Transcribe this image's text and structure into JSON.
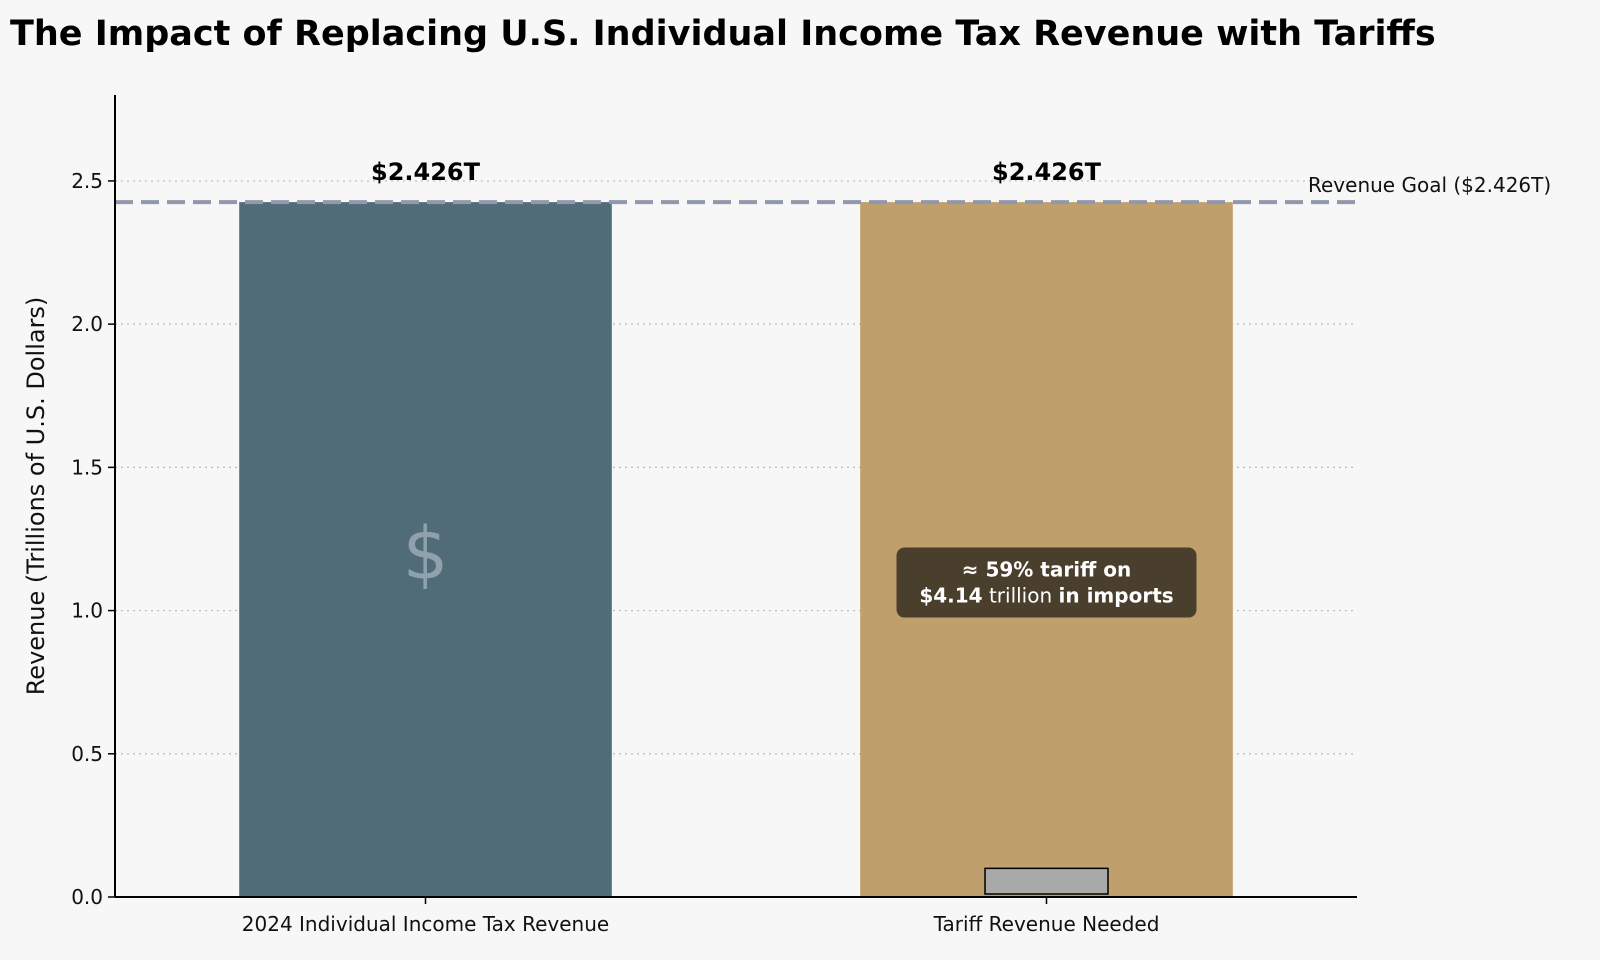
{
  "chart_data": {
    "type": "bar",
    "title": "The Impact of Replacing U.S. Individual Income Tax Revenue with Tariffs",
    "xlabel": "",
    "ylabel": "Revenue (Trillions of U.S. Dollars)",
    "ylim": [
      0,
      2.8
    ],
    "yticks": [
      0.0,
      0.5,
      1.0,
      1.5,
      2.0,
      2.5
    ],
    "ytick_labels": [
      "0.0",
      "0.5",
      "1.0",
      "1.5",
      "2.0",
      "2.5"
    ],
    "grid": "horizontal dotted",
    "categories": [
      "2024 Individual Income Tax Revenue",
      "Tariff Revenue Needed"
    ],
    "values": [
      2.426,
      2.426
    ],
    "value_labels": [
      "$2.426T",
      "$2.426T"
    ],
    "bar_colors": [
      "#506c79",
      "#bf9f6b"
    ],
    "bar_symbol": "$",
    "inset_bar_value": 0.1,
    "inset_bar_color": "#a9a9a9",
    "reference_line": {
      "value": 2.426,
      "label": "Revenue Goal ($2.426T)",
      "color": "#8f99ab"
    },
    "annotation": {
      "line1": "≈ 59% tariff on",
      "line2_bold_start": "$4.14",
      "line2_regular": " trillion ",
      "line2_bold_end": "in imports",
      "bg_color": "#4a3e2c"
    }
  }
}
